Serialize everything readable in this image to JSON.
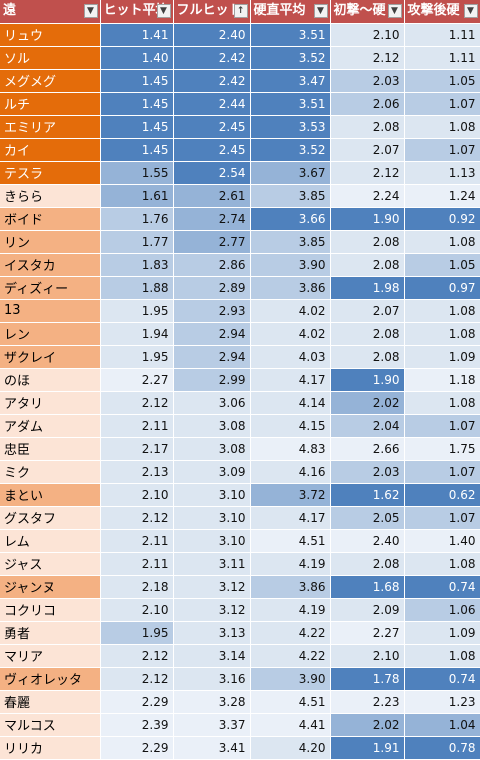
{
  "header": {
    "cols": [
      {
        "label": "遠",
        "filter_icon": "dropdown-icon"
      },
      {
        "label": "ヒット平均",
        "filter_icon": "dropdown-icon"
      },
      {
        "label": "フルヒット",
        "filter_icon": "sort-ascending-icon"
      },
      {
        "label": "硬直平均",
        "filter_icon": "dropdown-icon"
      },
      {
        "label": "初撃～硬",
        "filter_icon": "dropdown-icon"
      },
      {
        "label": "攻撃後硬",
        "filter_icon": "dropdown-icon"
      }
    ]
  },
  "colors": {
    "header_bg": "#c0504d",
    "name_dark": "#e46c0a",
    "name_mid": "#f4b183",
    "name_light": "#fce4d6",
    "blue_dark": "#4f81bd",
    "blue_mid": "#95b3d7",
    "blue_light": "#dce6f1"
  },
  "rows": [
    {
      "name": "リュウ",
      "tier": "dark",
      "values": [
        "1.41",
        "2.40",
        "3.51",
        "2.10",
        "1.11"
      ],
      "shades": [
        4,
        4,
        4,
        1,
        1
      ]
    },
    {
      "name": "ソル",
      "tier": "dark",
      "values": [
        "1.40",
        "2.42",
        "3.52",
        "2.12",
        "1.11"
      ],
      "shades": [
        4,
        4,
        4,
        1,
        1
      ]
    },
    {
      "name": "メグメグ",
      "tier": "dark",
      "values": [
        "1.45",
        "2.42",
        "3.47",
        "2.03",
        "1.05"
      ],
      "shades": [
        4,
        4,
        4,
        2,
        2
      ]
    },
    {
      "name": "ルチ",
      "tier": "dark",
      "values": [
        "1.45",
        "2.44",
        "3.51",
        "2.06",
        "1.07"
      ],
      "shades": [
        4,
        4,
        4,
        2,
        2
      ]
    },
    {
      "name": "エミリア",
      "tier": "dark",
      "values": [
        "1.45",
        "2.45",
        "3.53",
        "2.08",
        "1.08"
      ],
      "shades": [
        4,
        4,
        4,
        1,
        1
      ]
    },
    {
      "name": "カイ",
      "tier": "dark",
      "values": [
        "1.45",
        "2.45",
        "3.52",
        "2.07",
        "1.07"
      ],
      "shades": [
        4,
        4,
        4,
        1,
        2
      ]
    },
    {
      "name": "テスラ",
      "tier": "dark",
      "values": [
        "1.55",
        "2.54",
        "3.67",
        "2.12",
        "1.13"
      ],
      "shades": [
        3,
        4,
        3,
        1,
        1
      ]
    },
    {
      "name": "きらら",
      "tier": "light",
      "values": [
        "1.61",
        "2.61",
        "3.85",
        "2.24",
        "1.24"
      ],
      "shades": [
        3,
        3,
        2,
        0,
        0
      ]
    },
    {
      "name": "ボイド",
      "tier": "mid",
      "values": [
        "1.76",
        "2.74",
        "3.66",
        "1.90",
        "0.92"
      ],
      "shades": [
        2,
        3,
        4,
        4,
        4
      ]
    },
    {
      "name": "リン",
      "tier": "mid",
      "values": [
        "1.77",
        "2.77",
        "3.85",
        "2.08",
        "1.08"
      ],
      "shades": [
        2,
        3,
        2,
        1,
        1
      ]
    },
    {
      "name": "イスタカ",
      "tier": "mid",
      "values": [
        "1.83",
        "2.86",
        "3.90",
        "2.08",
        "1.05"
      ],
      "shades": [
        2,
        2,
        2,
        1,
        2
      ]
    },
    {
      "name": "ディズィー",
      "tier": "mid",
      "values": [
        "1.88",
        "2.89",
        "3.86",
        "1.98",
        "0.97"
      ],
      "shades": [
        2,
        2,
        2,
        4,
        4
      ]
    },
    {
      "name": "13",
      "tier": "mid",
      "values": [
        "1.95",
        "2.93",
        "4.02",
        "2.07",
        "1.08"
      ],
      "shades": [
        1,
        2,
        1,
        1,
        1
      ]
    },
    {
      "name": "レン",
      "tier": "mid",
      "values": [
        "1.94",
        "2.94",
        "4.02",
        "2.08",
        "1.08"
      ],
      "shades": [
        1,
        2,
        1,
        1,
        1
      ]
    },
    {
      "name": "ザクレイ",
      "tier": "mid",
      "values": [
        "1.95",
        "2.94",
        "4.03",
        "2.08",
        "1.09"
      ],
      "shades": [
        1,
        2,
        1,
        1,
        1
      ]
    },
    {
      "name": "のほ",
      "tier": "light",
      "values": [
        "2.27",
        "2.99",
        "4.17",
        "1.90",
        "1.18"
      ],
      "shades": [
        0,
        2,
        1,
        4,
        0
      ]
    },
    {
      "name": "アタリ",
      "tier": "light",
      "values": [
        "2.12",
        "3.06",
        "4.14",
        "2.02",
        "1.08"
      ],
      "shades": [
        1,
        1,
        1,
        3,
        1
      ]
    },
    {
      "name": "アダム",
      "tier": "light",
      "values": [
        "2.11",
        "3.08",
        "4.15",
        "2.04",
        "1.07"
      ],
      "shades": [
        1,
        1,
        1,
        2,
        2
      ]
    },
    {
      "name": "忠臣",
      "tier": "light",
      "values": [
        "2.17",
        "3.08",
        "4.83",
        "2.66",
        "1.75"
      ],
      "shades": [
        1,
        1,
        0,
        0,
        0
      ]
    },
    {
      "name": "ミク",
      "tier": "light",
      "values": [
        "2.13",
        "3.09",
        "4.16",
        "2.03",
        "1.07"
      ],
      "shades": [
        1,
        1,
        1,
        2,
        2
      ]
    },
    {
      "name": "まとい",
      "tier": "mid",
      "values": [
        "2.10",
        "3.10",
        "3.72",
        "1.62",
        "0.62"
      ],
      "shades": [
        1,
        1,
        3,
        4,
        4
      ]
    },
    {
      "name": "グスタフ",
      "tier": "light",
      "values": [
        "2.12",
        "3.10",
        "4.17",
        "2.05",
        "1.07"
      ],
      "shades": [
        1,
        1,
        1,
        2,
        2
      ]
    },
    {
      "name": "レム",
      "tier": "light",
      "values": [
        "2.11",
        "3.10",
        "4.51",
        "2.40",
        "1.40"
      ],
      "shades": [
        1,
        1,
        0,
        0,
        0
      ]
    },
    {
      "name": "ジャス",
      "tier": "light",
      "values": [
        "2.11",
        "3.11",
        "4.19",
        "2.08",
        "1.08"
      ],
      "shades": [
        1,
        1,
        1,
        1,
        1
      ]
    },
    {
      "name": "ジャンヌ",
      "tier": "mid",
      "values": [
        "2.18",
        "3.12",
        "3.86",
        "1.68",
        "0.74"
      ],
      "shades": [
        1,
        1,
        2,
        4,
        4
      ]
    },
    {
      "name": "コクリコ",
      "tier": "light",
      "values": [
        "2.10",
        "3.12",
        "4.19",
        "2.09",
        "1.06"
      ],
      "shades": [
        1,
        1,
        1,
        1,
        2
      ]
    },
    {
      "name": "勇者",
      "tier": "light",
      "values": [
        "1.95",
        "3.13",
        "4.22",
        "2.27",
        "1.09"
      ],
      "shades": [
        2,
        1,
        1,
        0,
        1
      ]
    },
    {
      "name": "マリア",
      "tier": "light",
      "values": [
        "2.12",
        "3.14",
        "4.22",
        "2.10",
        "1.08"
      ],
      "shades": [
        1,
        1,
        1,
        1,
        1
      ]
    },
    {
      "name": "ヴィオレッタ",
      "tier": "mid",
      "values": [
        "2.12",
        "3.16",
        "3.90",
        "1.78",
        "0.74"
      ],
      "shades": [
        1,
        1,
        2,
        4,
        4
      ]
    },
    {
      "name": "春麗",
      "tier": "light",
      "values": [
        "2.29",
        "3.28",
        "4.51",
        "2.23",
        "1.23"
      ],
      "shades": [
        0,
        0,
        0,
        0,
        0
      ]
    },
    {
      "name": "マルコス",
      "tier": "light",
      "values": [
        "2.39",
        "3.37",
        "4.41",
        "2.02",
        "1.04"
      ],
      "shades": [
        0,
        0,
        0,
        3,
        3
      ]
    },
    {
      "name": "リリカ",
      "tier": "light",
      "values": [
        "2.29",
        "3.41",
        "4.20",
        "1.91",
        "0.78"
      ],
      "shades": [
        0,
        0,
        1,
        4,
        4
      ]
    }
  ]
}
